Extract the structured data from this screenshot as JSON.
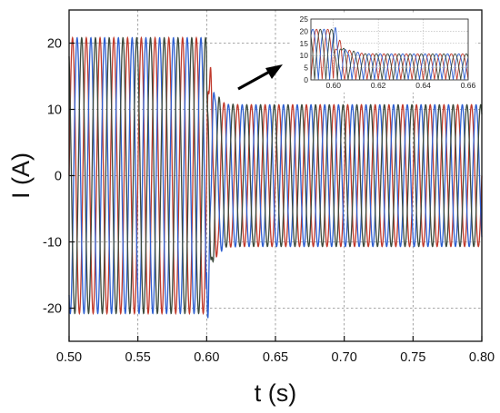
{
  "chart_data": [
    {
      "type": "line",
      "title": "",
      "xlabel": "t (s)",
      "ylabel": "I (A)",
      "xlim": [
        0.5,
        0.8
      ],
      "ylim": [
        -25,
        25
      ],
      "x_ticks": [
        0.5,
        0.55,
        0.6,
        0.65,
        0.7,
        0.75,
        0.8
      ],
      "x_tick_labels": [
        "0.50",
        "0.55",
        "0.60",
        "0.65",
        "0.70",
        "0.75",
        "0.80"
      ],
      "y_ticks": [
        -20,
        -10,
        0,
        10,
        20
      ],
      "y_tick_labels": [
        "-20",
        "-10",
        "0",
        "10",
        "20"
      ],
      "grid": true,
      "legend": "none",
      "series": [
        {
          "color": "#c0392b",
          "phase_deg": 0,
          "frequency_hz": 100,
          "amplitude_before": 20.8,
          "amplitude_after": 10.7,
          "step_time": 0.6
        },
        {
          "color": "#2e5fd1",
          "phase_deg": -120,
          "frequency_hz": 100,
          "amplitude_before": 20.8,
          "amplitude_after": 10.7,
          "step_time": 0.6
        },
        {
          "color": "#3c4a3c",
          "phase_deg": 120,
          "frequency_hz": 100,
          "amplitude_before": 20.8,
          "amplitude_after": 10.7,
          "step_time": 0.6
        }
      ],
      "annotation": "arrow pointing to zoomed inset"
    },
    {
      "type": "line",
      "title": "",
      "xlim": [
        0.59,
        0.66
      ],
      "ylim": [
        0,
        25
      ],
      "x_ticks": [
        0.6,
        0.62,
        0.64,
        0.66
      ],
      "x_tick_labels": [
        "0.60",
        "0.62",
        "0.64",
        "0.66"
      ],
      "y_ticks": [
        0,
        5,
        10,
        15,
        20,
        25
      ],
      "y_tick_labels": [
        "0",
        "5",
        "10",
        "15",
        "20",
        "25"
      ],
      "grid": true,
      "curve": "absolute value of each phase current",
      "series_colors": [
        "#c0392b",
        "#2e5fd1",
        "#3c4a3c"
      ]
    }
  ]
}
